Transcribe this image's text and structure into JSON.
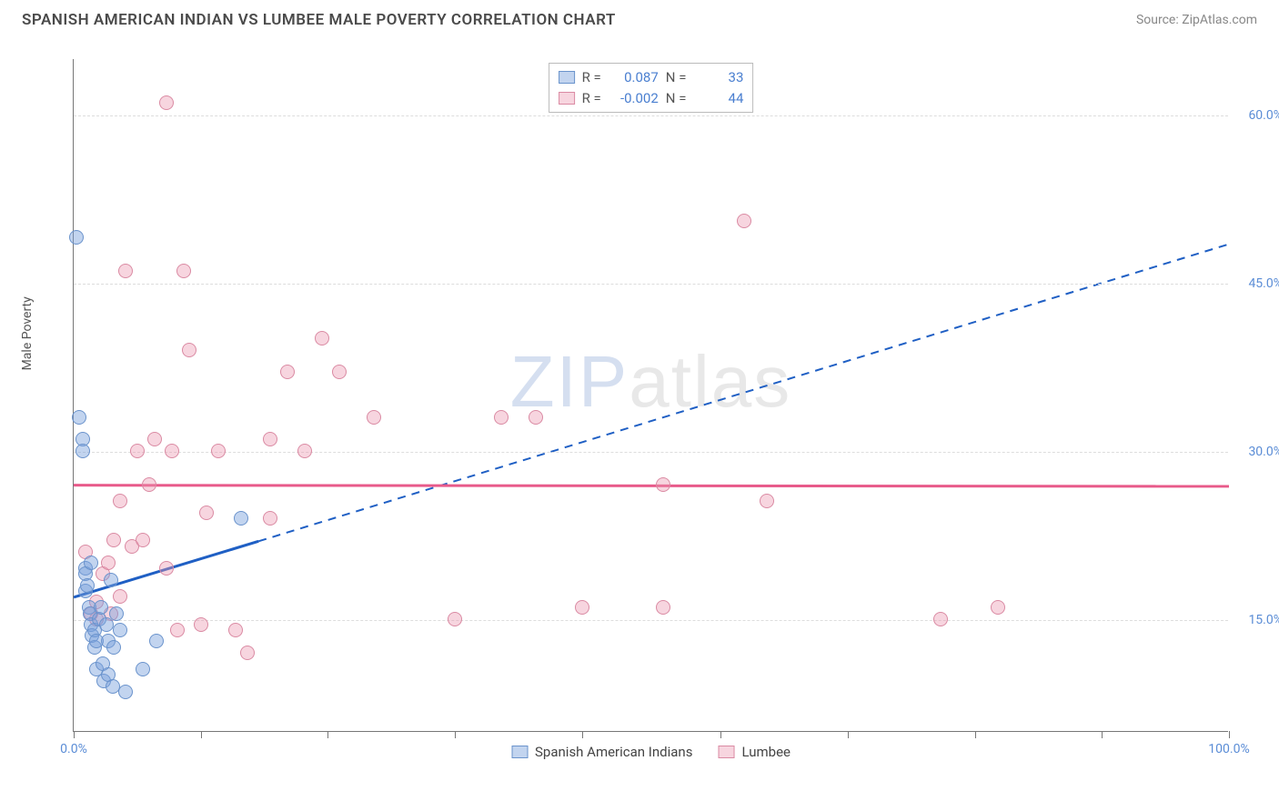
{
  "title": "SPANISH AMERICAN INDIAN VS LUMBEE MALE POVERTY CORRELATION CHART",
  "source": "Source: ZipAtlas.com",
  "ylabel": "Male Poverty",
  "watermark": {
    "left": "ZIP",
    "right": "atlas"
  },
  "chart": {
    "type": "scatter",
    "xlim": [
      0,
      100
    ],
    "ylim": [
      5,
      65
    ],
    "xticks": [
      0,
      11,
      22,
      33,
      44,
      56,
      67,
      78,
      89,
      100
    ],
    "xtick_labels": {
      "0": "0.0%",
      "100": "100.0%"
    },
    "yticks": [
      15,
      30,
      45,
      60
    ],
    "ytick_labels": [
      "15.0%",
      "30.0%",
      "45.0%",
      "60.0%"
    ],
    "grid_color": "#dddddd",
    "axis_color": "#777777",
    "background_color": "#ffffff"
  },
  "series": [
    {
      "name": "Spanish American Indians",
      "fill": "rgba(120,160,220,0.45)",
      "stroke": "#6a93cc",
      "trend": {
        "color": "#1f5fc4",
        "width": 3,
        "x1": 0,
        "y1": 17,
        "x2_solid": 16,
        "y2_solid": 22,
        "x2_dash": 100,
        "y2_dash": 48.5
      },
      "r_label": "R =",
      "r_value": "0.087",
      "n_label": "N =",
      "n_value": "33",
      "points": [
        [
          0.2,
          49
        ],
        [
          0.5,
          33
        ],
        [
          0.8,
          31
        ],
        [
          0.8,
          30
        ],
        [
          1,
          19.5
        ],
        [
          1,
          19
        ],
        [
          1,
          17.5
        ],
        [
          1.2,
          18
        ],
        [
          1.3,
          16
        ],
        [
          1.4,
          15.5
        ],
        [
          1.5,
          20
        ],
        [
          1.5,
          14.5
        ],
        [
          1.6,
          13.5
        ],
        [
          1.8,
          14
        ],
        [
          1.8,
          12.5
        ],
        [
          2,
          13
        ],
        [
          2,
          10.5
        ],
        [
          2.2,
          15
        ],
        [
          2.4,
          16
        ],
        [
          2.5,
          11
        ],
        [
          2.6,
          9.5
        ],
        [
          2.8,
          14.5
        ],
        [
          3,
          13
        ],
        [
          3,
          10
        ],
        [
          3.2,
          18.5
        ],
        [
          3.4,
          9
        ],
        [
          3.5,
          12.5
        ],
        [
          3.7,
          15.5
        ],
        [
          4,
          14
        ],
        [
          4.5,
          8.5
        ],
        [
          6,
          10.5
        ],
        [
          7.2,
          13
        ],
        [
          14.5,
          24
        ]
      ]
    },
    {
      "name": "Lumbee",
      "fill": "rgba(235,150,175,0.40)",
      "stroke": "#da8aa3",
      "trend": {
        "color": "#e85a8a",
        "width": 3,
        "x1": 0,
        "y1": 27,
        "x2_solid": 100,
        "y2_solid": 26.9,
        "dash": false
      },
      "r_label": "R =",
      "r_value": "-0.002",
      "n_label": "N =",
      "n_value": "44",
      "points": [
        [
          1,
          21
        ],
        [
          1.5,
          15.5
        ],
        [
          2,
          16.5
        ],
        [
          2,
          15
        ],
        [
          2.5,
          19
        ],
        [
          3,
          20
        ],
        [
          3.2,
          15.5
        ],
        [
          3.5,
          22
        ],
        [
          4,
          17
        ],
        [
          4,
          25.5
        ],
        [
          4.5,
          46
        ],
        [
          5,
          21.5
        ],
        [
          5.5,
          30
        ],
        [
          6,
          22
        ],
        [
          6.5,
          27
        ],
        [
          7,
          31
        ],
        [
          8,
          61
        ],
        [
          8,
          19.5
        ],
        [
          8.5,
          30
        ],
        [
          9,
          14
        ],
        [
          9.5,
          46
        ],
        [
          10,
          39
        ],
        [
          11,
          14.5
        ],
        [
          11.5,
          24.5
        ],
        [
          12.5,
          30
        ],
        [
          14,
          14
        ],
        [
          15,
          12
        ],
        [
          17,
          24
        ],
        [
          17,
          31
        ],
        [
          18.5,
          37
        ],
        [
          20,
          30
        ],
        [
          21.5,
          40
        ],
        [
          23,
          37
        ],
        [
          26,
          33
        ],
        [
          37,
          33
        ],
        [
          40,
          33
        ],
        [
          33,
          15
        ],
        [
          44,
          16
        ],
        [
          51,
          16
        ],
        [
          51,
          27
        ],
        [
          58,
          50.5
        ],
        [
          60,
          25.5
        ],
        [
          75,
          15
        ],
        [
          80,
          16
        ]
      ]
    }
  ]
}
